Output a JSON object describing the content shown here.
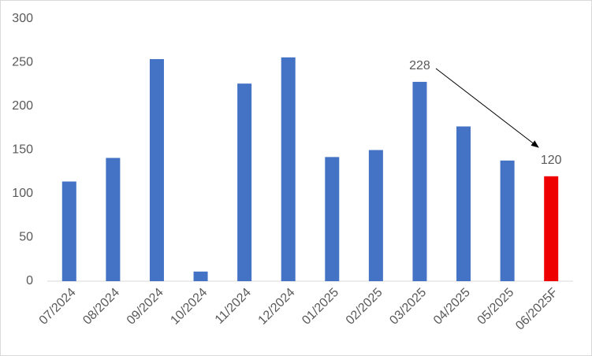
{
  "chart_data": {
    "type": "bar",
    "categories": [
      "07/2024",
      "08/2024",
      "09/2024",
      "10/2024",
      "11/2024",
      "12/2024",
      "01/2025",
      "02/2025",
      "03/2025",
      "04/2025",
      "05/2025",
      "06/2025F"
    ],
    "values": [
      114,
      141,
      254,
      11,
      226,
      256,
      142,
      150,
      228,
      177,
      138,
      120
    ],
    "value_labels": [
      null,
      null,
      null,
      null,
      null,
      null,
      null,
      null,
      "228",
      null,
      null,
      "120"
    ],
    "colors": [
      "#4472c4",
      "#4472c4",
      "#4472c4",
      "#4472c4",
      "#4472c4",
      "#4472c4",
      "#4472c4",
      "#4472c4",
      "#4472c4",
      "#4472c4",
      "#4472c4",
      "#ee0000"
    ],
    "ylim": [
      0,
      300
    ],
    "yticks": [
      0,
      50,
      100,
      150,
      200,
      250,
      300
    ],
    "grid": false
  }
}
